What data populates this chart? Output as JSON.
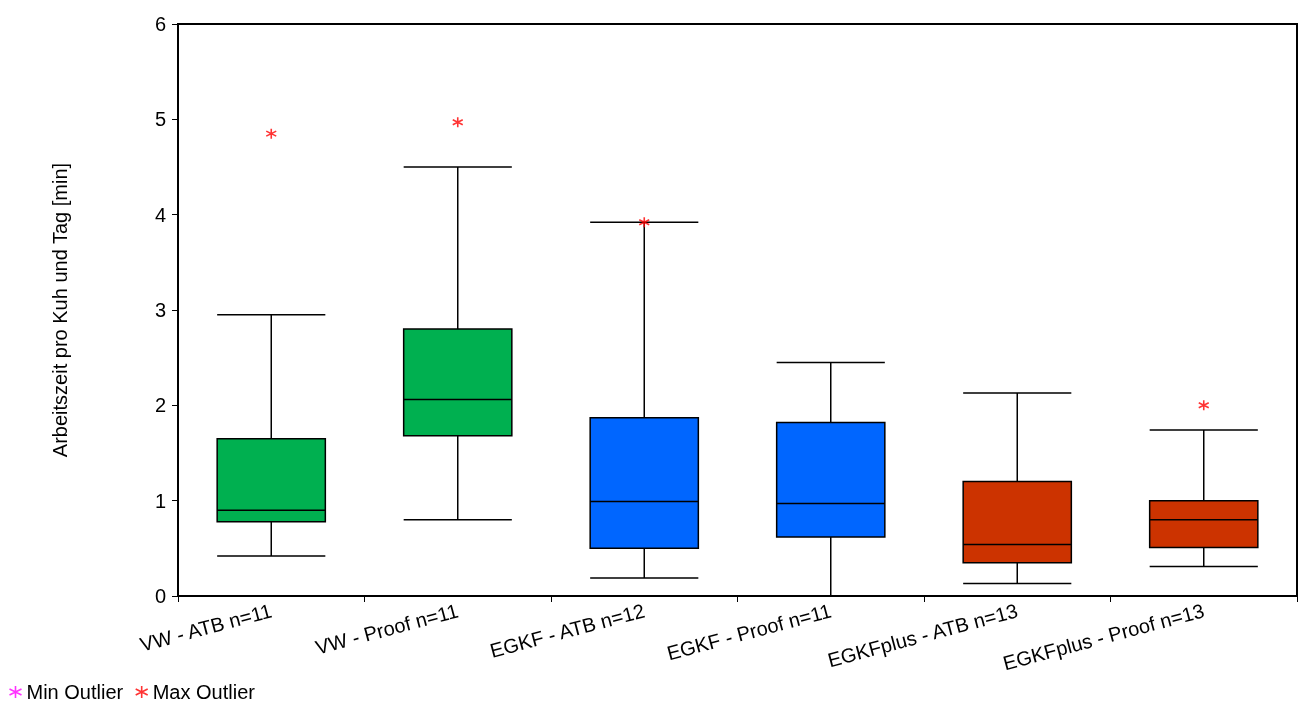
{
  "chart_data": {
    "type": "box",
    "ylabel": "Arbeitszeit pro Kuh und Tag [min]",
    "categories": [
      "VW - ATB n=11",
      "VW - Proof n=11",
      "EGKF - ATB n=12",
      "EGKF - Proof n=11",
      "EGKFplus - ATB n=13",
      "EGKFplus - Proof n=13"
    ],
    "colors": [
      "#00b050",
      "#00b050",
      "#0066ff",
      "#0066ff",
      "#cc3300",
      "#cc3300"
    ],
    "boxes": [
      {
        "low": 0.42,
        "q1": 0.78,
        "median": 0.9,
        "q3": 1.65,
        "high": 2.95
      },
      {
        "low": 0.8,
        "q1": 1.68,
        "median": 2.06,
        "q3": 2.8,
        "high": 4.5
      },
      {
        "low": 0.19,
        "q1": 0.5,
        "median": 0.99,
        "q3": 1.87,
        "high": 3.92
      },
      {
        "low": 0,
        "q1": 0.62,
        "median": 0.97,
        "q3": 1.82,
        "high": 2.45
      },
      {
        "low": 0.13,
        "q1": 0.35,
        "median": 0.54,
        "q3": 1.2,
        "high": 2.13
      },
      {
        "low": 0.31,
        "q1": 0.51,
        "median": 0.8,
        "q3": 1.0,
        "high": 1.74
      }
    ],
    "series": [
      {
        "name": "Min Outlier",
        "type": "scatter",
        "color": "#ff00ff",
        "marker": "cross",
        "values": [
          null,
          null,
          null,
          null,
          null,
          null
        ]
      },
      {
        "name": "Max Outlier",
        "type": "scatter",
        "color": "#ff0000",
        "marker": "cross",
        "x": [
          "VW - ATB n=11",
          "VW - Proof n=11",
          "EGKF - ATB n=12",
          "EGKF - Proof n=11",
          "EGKFplus - ATB n=13",
          "EGKFplus - Proof n=13"
        ],
        "values": [
          4.85,
          4.97,
          3.92,
          null,
          null,
          2.0
        ]
      }
    ],
    "ylim": [
      0,
      6
    ],
    "yticks": [
      0,
      1,
      2,
      3,
      4,
      5,
      6
    ],
    "grid": false,
    "legend": "bottom left"
  }
}
